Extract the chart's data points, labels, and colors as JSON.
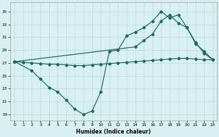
{
  "xlabel": "Humidex (Indice chaleur)",
  "background_color": "#d9f0f0",
  "line_color": "#1a6b5a",
  "grid_color": "#b8d8d8",
  "xlim": [
    -0.5,
    23.5
  ],
  "ylim": [
    18,
    36.5
  ],
  "yticks": [
    19,
    21,
    23,
    25,
    27,
    29,
    31,
    33,
    35
  ],
  "xticks": [
    0,
    1,
    2,
    3,
    4,
    5,
    6,
    7,
    8,
    9,
    10,
    11,
    12,
    13,
    14,
    15,
    16,
    17,
    18,
    19,
    20,
    21,
    22,
    23
  ],
  "line_flat": {
    "x": [
      0,
      1,
      2,
      3,
      4,
      5,
      6,
      7,
      8,
      9,
      10,
      11,
      12,
      13,
      14,
      15,
      16,
      17,
      18,
      19,
      20,
      21,
      22,
      23
    ],
    "y": [
      27.2,
      27.1,
      27.0,
      26.9,
      26.8,
      26.8,
      26.7,
      26.6,
      26.6,
      26.7,
      26.8,
      26.9,
      27.0,
      27.1,
      27.2,
      27.3,
      27.4,
      27.5,
      27.6,
      27.7,
      27.7,
      27.6,
      27.5,
      27.5
    ]
  },
  "line_wavy": {
    "x": [
      0,
      2,
      3,
      4,
      5,
      6,
      7,
      8,
      9,
      10,
      11,
      12,
      13,
      14,
      15,
      16,
      17,
      18,
      19,
      20,
      21,
      22,
      23
    ],
    "y": [
      27.2,
      25.8,
      24.5,
      23.2,
      22.5,
      21.2,
      19.8,
      19.0,
      19.5,
      22.5,
      28.8,
      29.0,
      31.2,
      31.8,
      32.5,
      33.5,
      35.0,
      34.0,
      34.5,
      32.5,
      30.0,
      28.8,
      27.5
    ]
  },
  "line_diag": {
    "x": [
      0,
      14,
      15,
      16,
      17,
      18,
      19,
      20,
      21,
      22,
      23
    ],
    "y": [
      27.2,
      29.5,
      30.5,
      31.5,
      33.5,
      34.5,
      33.2,
      32.5,
      30.2,
      28.5,
      27.5
    ]
  }
}
